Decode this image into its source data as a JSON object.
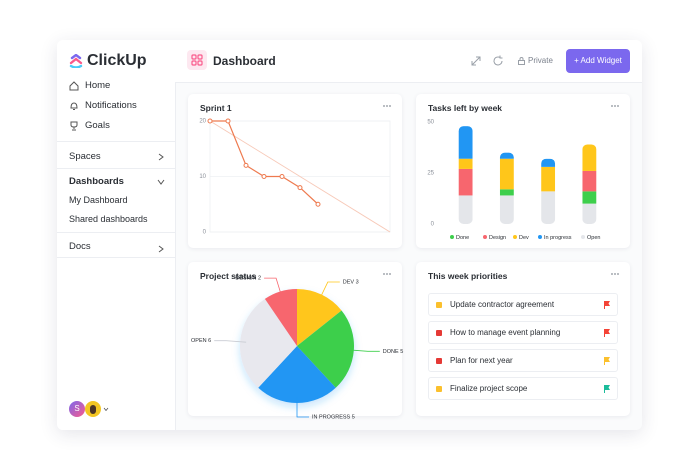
{
  "sidebar": {
    "brand": "ClickUp",
    "items": [
      "Home",
      "Notifications",
      "Goals",
      "Spaces",
      "Dashboards",
      "My Dashboard",
      "Shared dashboards",
      "Docs"
    ],
    "avatar": "S"
  },
  "header": {
    "title": "Dashboard",
    "visibility": "Private",
    "button": "+ Add Widget"
  },
  "priorities": {
    "title": "This week priorities",
    "items": [
      {
        "text": "Update contractor agreement",
        "color": "#fbc02d",
        "flag": "#f44336"
      },
      {
        "text": "How to manage event planning",
        "color": "#e53935",
        "flag": "#f44336"
      },
      {
        "text": "Plan for next year",
        "color": "#e53935",
        "flag": "#fbc02d"
      },
      {
        "text": "Finalize project scope",
        "color": "#fbc02d",
        "flag": "#1bbc9b"
      }
    ]
  },
  "chart_data": [
    {
      "type": "line",
      "title": "Sprint 1",
      "x": [
        0,
        1,
        2,
        3,
        4,
        5,
        6
      ],
      "xlim": [
        0,
        10
      ],
      "ylim": [
        0,
        20
      ],
      "yticks": [
        0,
        10,
        20
      ],
      "grid": true,
      "series": [
        {
          "color": "#ee7a4f",
          "values": [
            20,
            20,
            12,
            10,
            10,
            8,
            5
          ]
        },
        {
          "color": "#f7c9b8",
          "x": [
            0,
            10
          ],
          "values": [
            20,
            0
          ],
          "dashed": true
        }
      ]
    },
    {
      "type": "bar",
      "stacked": true,
      "title": "Tasks left by week",
      "categories": [
        null,
        null,
        null,
        null
      ],
      "ylim": [
        0,
        50
      ],
      "yticks": [
        0,
        25,
        50
      ],
      "legend": "bottom",
      "series": [
        {
          "name": "Done",
          "color": "#3ecf4c",
          "values": [
            0,
            3,
            0,
            6
          ]
        },
        {
          "name": "Design",
          "color": "#f7666e",
          "values": [
            13,
            0,
            0,
            10
          ]
        },
        {
          "name": "Dev",
          "color": "#ffc61a",
          "values": [
            5,
            15,
            12,
            13
          ]
        },
        {
          "name": "In progress",
          "color": "#2196f3",
          "values": [
            16,
            3,
            4,
            0
          ]
        },
        {
          "name": "Open",
          "color": "#e4e6ea",
          "values": [
            14,
            14,
            16,
            10
          ]
        }
      ]
    },
    {
      "type": "pie",
      "title": "Project status",
      "labels": [
        "DEV 3",
        "DONE 5",
        "IN PROGRESS 5",
        "OPEN 6",
        "DESIGN 2"
      ],
      "values": [
        3,
        5,
        5,
        6,
        2
      ],
      "colors": [
        "#ffc61a",
        "#3ecf4c",
        "#2196f3",
        "#e8e8ee",
        "#f7666e"
      ]
    }
  ]
}
